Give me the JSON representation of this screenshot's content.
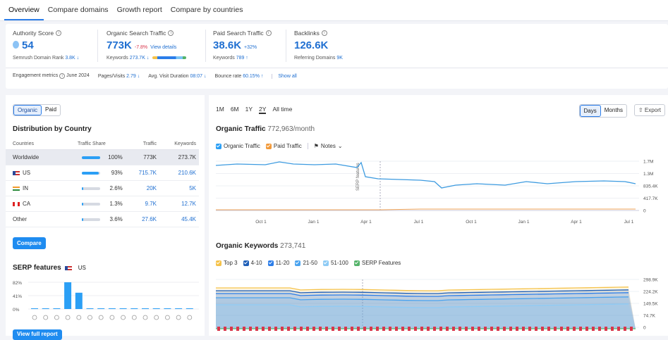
{
  "tabs": [
    "Overview",
    "Compare domains",
    "Growth report",
    "Compare by countries"
  ],
  "metrics": {
    "authority": {
      "label": "Authority Score",
      "value": "54",
      "sub_label": "Semrush Domain Rank",
      "sub_value": "3.8K ↓"
    },
    "organic": {
      "label": "Organic Search Traffic",
      "value": "773K",
      "change": "-7.8%",
      "link": "View details",
      "sub_label": "Keywords",
      "sub_value": "273.7K ↓"
    },
    "paid": {
      "label": "Paid Search Traffic",
      "value": "38.6K",
      "change": "+32%",
      "sub_label": "Keywords",
      "sub_value": "789 ↑"
    },
    "backlinks": {
      "label": "Backlinks",
      "value": "126.6K",
      "sub_label": "Referring Domains",
      "sub_value": "9K"
    }
  },
  "engagement": {
    "label": "Engagement metrics",
    "date": "June 2024",
    "pages_label": "Pages/Visits",
    "pages_value": "2.79 ↓",
    "duration_label": "Avg. Visit Duration",
    "duration_value": "08:07 ↓",
    "bounce_label": "Bounce rate",
    "bounce_value": "60.15% ↑",
    "show_all": "Show all"
  },
  "left": {
    "segment": [
      "Organic",
      "Paid"
    ],
    "dist_title": "Distribution by Country",
    "columns": [
      "Countries",
      "Traffic Share",
      "Traffic",
      "Keywords"
    ],
    "rows": [
      {
        "country": "Worldwide",
        "share": "100%",
        "share_val": 1.0,
        "traffic": "773K",
        "keywords": "273.7K",
        "flag": ""
      },
      {
        "country": "US",
        "share": "93%",
        "share_val": 0.93,
        "traffic": "715.7K",
        "keywords": "210.6K",
        "flag": "us"
      },
      {
        "country": "IN",
        "share": "2.6%",
        "share_val": 0.026,
        "traffic": "20K",
        "keywords": "5K",
        "flag": "in"
      },
      {
        "country": "CA",
        "share": "1.3%",
        "share_val": 0.013,
        "traffic": "9.7K",
        "keywords": "12.7K",
        "flag": "ca"
      },
      {
        "country": "Other",
        "share": "3.6%",
        "share_val": 0.036,
        "traffic": "27.6K",
        "keywords": "45.4K",
        "flag": ""
      }
    ],
    "compare_btn": "Compare",
    "serp_title": "SERP features",
    "serp_country": "US",
    "serp_y": [
      "82%",
      "41%",
      "0%"
    ],
    "serp_values": [
      0,
      1,
      1,
      82,
      50,
      0,
      0,
      0,
      0,
      2,
      0,
      1,
      1,
      0,
      0
    ],
    "view_full": "View full report"
  },
  "right": {
    "time_ranges": [
      "1M",
      "6M",
      "1Y",
      "2Y",
      "All time"
    ],
    "time_selected": "2Y",
    "days": "Days",
    "months": "Months",
    "export": "Export",
    "ot_title": "Organic Traffic",
    "ot_sub": "772,963/month",
    "ot_legend": [
      "Organic Traffic",
      "Paid Traffic"
    ],
    "notes": "Notes",
    "ot_yticks": [
      "1.7M",
      "1.3M",
      "835.4K",
      "417.7K",
      "0"
    ],
    "x_ticks": [
      "Oct 1",
      "Jan 1",
      "Apr 1",
      "Jul 1",
      "Oct 1",
      "Jan 1",
      "Apr 1",
      "Jul 1"
    ],
    "serp_marker": "SERP features",
    "ok_title": "Organic Keywords",
    "ok_sub": "273,741",
    "ok_legend": [
      "Top 3",
      "4-10",
      "11-20",
      "21-50",
      "51-100",
      "SERP Features"
    ],
    "ok_yticks": [
      "298.9K",
      "224.2K",
      "149.5K",
      "74.7K",
      "0"
    ]
  },
  "colors": {
    "accent": "#2b7de9",
    "blue_line": "#3d9be0",
    "paid_line": "#f2a65a"
  }
}
